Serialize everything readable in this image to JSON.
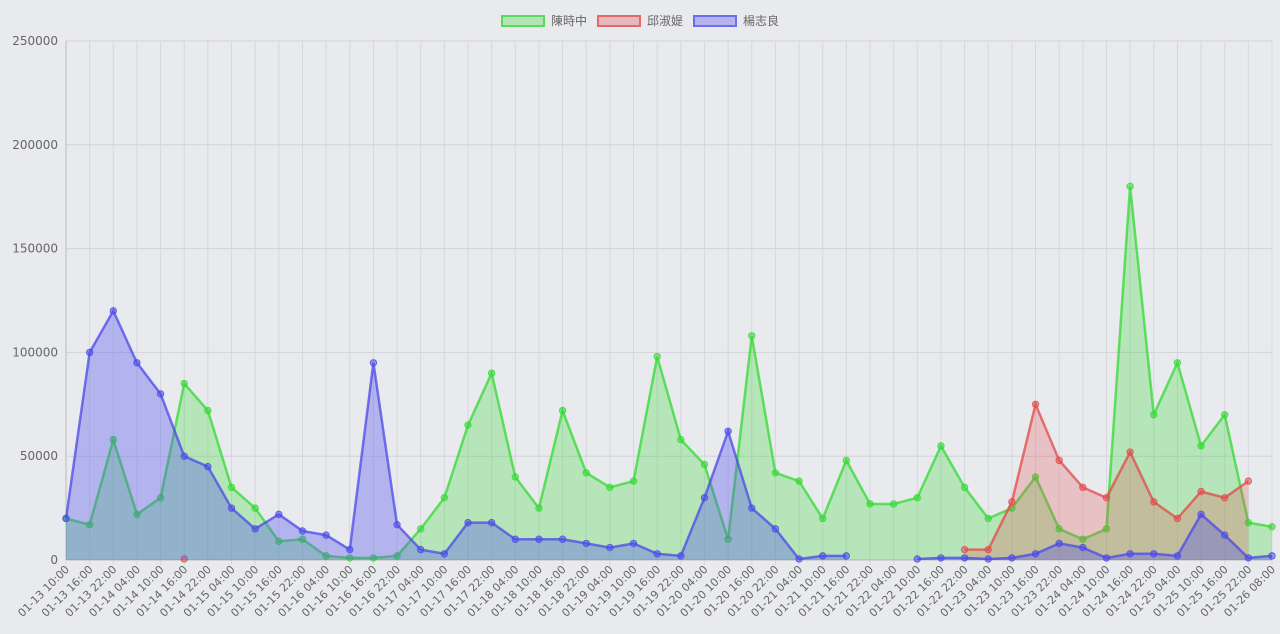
{
  "chart_data": {
    "type": "area",
    "x": [
      "01-13 10:00",
      "01-13 16:00",
      "01-13 22:00",
      "01-14 04:00",
      "01-14 10:00",
      "01-14 16:00",
      "01-14 22:00",
      "01-15 04:00",
      "01-15 10:00",
      "01-15 16:00",
      "01-15 22:00",
      "01-16 04:00",
      "01-16 10:00",
      "01-16 16:00",
      "01-16 22:00",
      "01-17 04:00",
      "01-17 10:00",
      "01-17 16:00",
      "01-17 22:00",
      "01-18 04:00",
      "01-18 10:00",
      "01-18 16:00",
      "01-18 22:00",
      "01-19 04:00",
      "01-19 10:00",
      "01-19 16:00",
      "01-19 22:00",
      "01-20 04:00",
      "01-20 10:00",
      "01-20 16:00",
      "01-20 22:00",
      "01-21 04:00",
      "01-21 10:00",
      "01-21 16:00",
      "01-21 22:00",
      "01-22 04:00",
      "01-22 10:00",
      "01-22 16:00",
      "01-22 22:00",
      "01-23 04:00",
      "01-23 10:00",
      "01-23 16:00",
      "01-23 22:00",
      "01-24 04:00",
      "01-24 10:00",
      "01-24 16:00",
      "01-24 22:00",
      "01-25 04:00",
      "01-25 10:00",
      "01-25 16:00",
      "01-25 22:00",
      "01-26 08:00"
    ],
    "ylim": [
      0,
      250000
    ],
    "yticks": [
      "0",
      "50000",
      "100000",
      "150000",
      "200000",
      "250000"
    ],
    "grid": true,
    "legend_position": "top-center",
    "series": [
      {
        "name": "陳時中",
        "color": "#33d933",
        "fill": "rgba(51,217,51,0.28)",
        "values": [
          20000,
          17000,
          58000,
          22000,
          30000,
          85000,
          72000,
          35000,
          25000,
          9000,
          10000,
          2000,
          1000,
          1000,
          2000,
          15000,
          30000,
          65000,
          90000,
          40000,
          25000,
          72000,
          42000,
          35000,
          38000,
          98000,
          58000,
          46000,
          10000,
          108000,
          42000,
          38000,
          20000,
          48000,
          27000,
          27000,
          30000,
          55000,
          35000,
          20000,
          25000,
          40000,
          15000,
          10000,
          15000,
          180000,
          70000,
          95000,
          55000,
          70000,
          18000,
          16000
        ]
      },
      {
        "name": "邱淑媞",
        "color": "#e24a4a",
        "fill": "rgba(230,70,70,0.25)",
        "values": [
          null,
          null,
          null,
          null,
          null,
          500,
          null,
          null,
          null,
          null,
          null,
          null,
          null,
          null,
          null,
          null,
          null,
          null,
          null,
          null,
          null,
          null,
          null,
          null,
          null,
          null,
          null,
          null,
          null,
          null,
          null,
          null,
          null,
          null,
          null,
          null,
          null,
          null,
          5000,
          5000,
          28000,
          75000,
          48000,
          35000,
          30000,
          52000,
          28000,
          20000,
          33000,
          30000,
          38000,
          null
        ]
      },
      {
        "name": "楊志良",
        "color": "#4a4ae8",
        "fill": "rgba(80,80,235,0.35)",
        "values": [
          20000,
          100000,
          120000,
          95000,
          80000,
          50000,
          45000,
          25000,
          15000,
          22000,
          14000,
          12000,
          5000,
          95000,
          17000,
          5000,
          3000,
          18000,
          18000,
          10000,
          10000,
          10000,
          8000,
          6000,
          8000,
          3000,
          2000,
          30000,
          62000,
          25000,
          15000,
          500,
          2000,
          2000,
          null,
          null,
          500,
          1000,
          1000,
          500,
          1000,
          3000,
          8000,
          6000,
          1000,
          3000,
          3000,
          2000,
          22000,
          12000,
          1000,
          2000
        ]
      }
    ]
  }
}
